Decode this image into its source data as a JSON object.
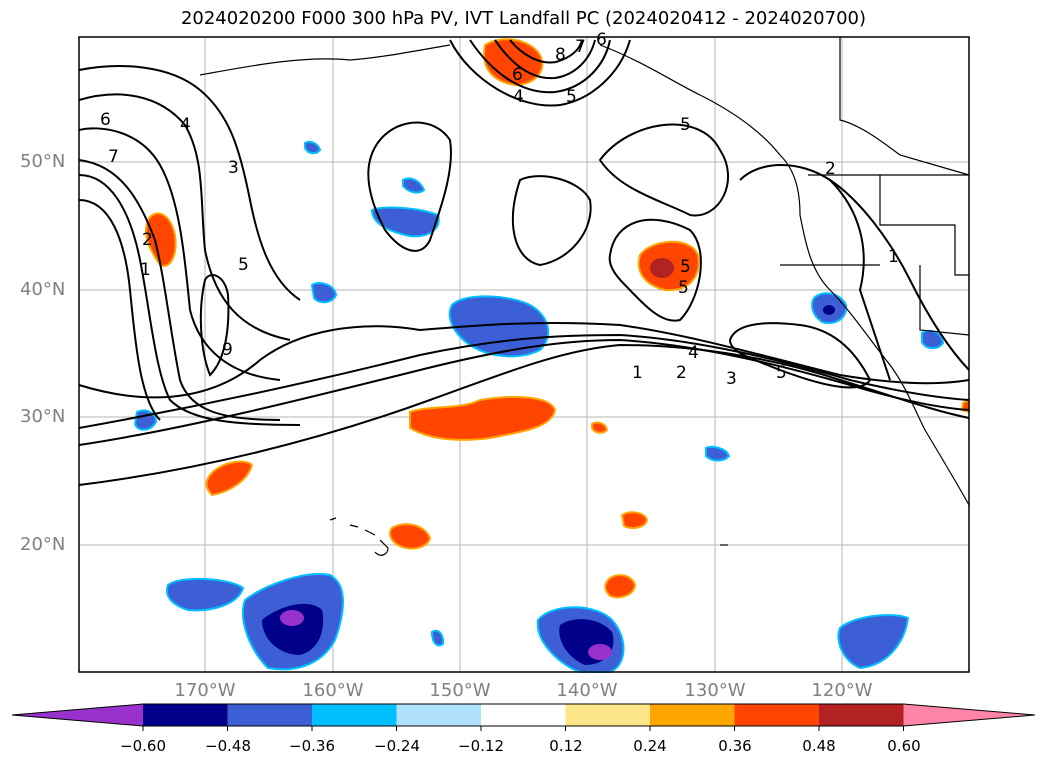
{
  "title": "2024020200 F000 300 hPa PV, IVT Landfall PC (2024020412 - 2024020700)",
  "lat_labels": [
    "50°N",
    "40°N",
    "30°N",
    "20°N"
  ],
  "lon_labels": [
    "170°W",
    "160°W",
    "150°W",
    "140°W",
    "130°W",
    "120°W"
  ],
  "contour_labels": [
    "6",
    "7",
    "4",
    "3",
    "5",
    "2",
    "1",
    "6",
    "8",
    "7",
    "6",
    "4",
    "5",
    "5",
    "2",
    "1",
    "5",
    "5",
    "1",
    "2",
    "3",
    "4",
    "5",
    "9"
  ],
  "colorbar": {
    "ticks": [
      "−0.60",
      "−0.48",
      "−0.36",
      "−0.24",
      "−0.12",
      "0.12",
      "0.24",
      "0.36",
      "0.48",
      "0.60"
    ],
    "colors": [
      "#9932cc",
      "#00008b",
      "#3c5fd6",
      "#00bfff",
      "#afe2fa",
      "#ffffff",
      "#fde68a",
      "#ffa500",
      "#ff4500",
      "#b22222",
      "#ff85a8"
    ]
  }
}
